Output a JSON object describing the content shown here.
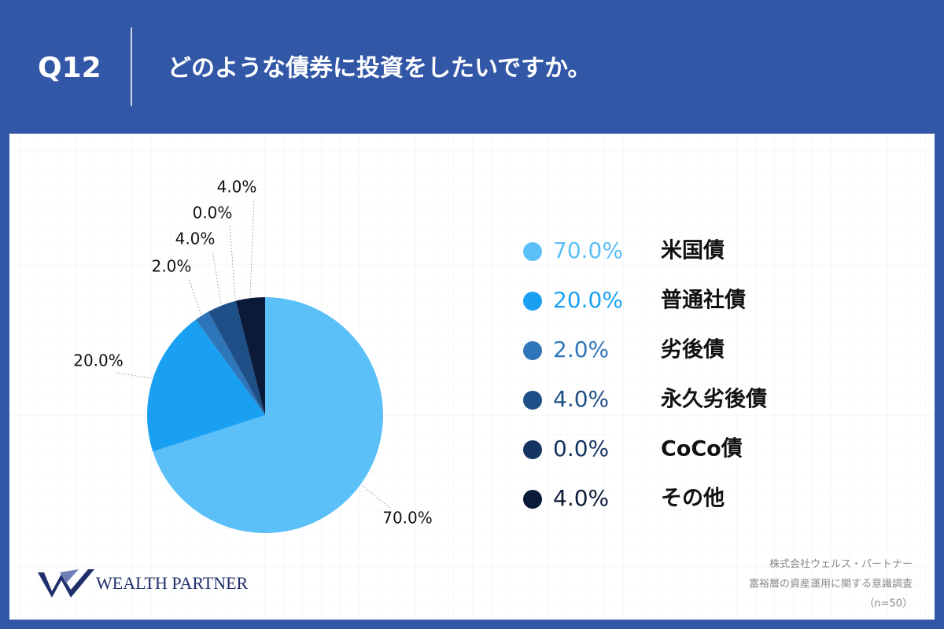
{
  "header": {
    "number": "Q12",
    "question": "どのような債券に投資をしたいですか。"
  },
  "chart_data": {
    "type": "pie",
    "categories": [
      "米国債",
      "普通社債",
      "劣後債",
      "永久劣後債",
      "CoCo債",
      "その他"
    ],
    "values": [
      70,
      20,
      2,
      4,
      0,
      4
    ],
    "value_labels": [
      "70.0%",
      "20.0%",
      "2.0%",
      "4.0%",
      "0.0%",
      "4.0%"
    ],
    "colors": [
      "#5bbff8",
      "#1aa0f2",
      "#2e76b9",
      "#1e4f86",
      "#153361",
      "#0b1a38"
    ]
  },
  "footer": {
    "brand": "WEALTH PARTNER",
    "source": [
      "株式会社ウェルス・パートナー",
      "富裕層の資産運用に関する意識調査",
      "（n=50）"
    ]
  }
}
